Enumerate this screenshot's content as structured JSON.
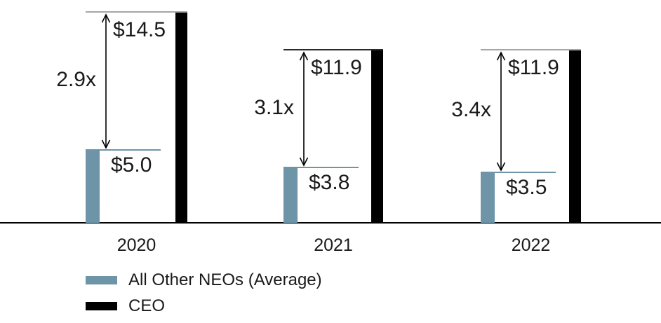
{
  "chart_data": {
    "type": "bar",
    "title": "",
    "categories": [
      "2020",
      "2021",
      "2022"
    ],
    "series": [
      {
        "name": "All Other NEOs (Average)",
        "values": [
          5.0,
          3.8,
          3.5
        ],
        "color": "#6E94A8"
      },
      {
        "name": "CEO",
        "values": [
          14.5,
          11.9,
          11.9
        ],
        "color": "#000000"
      }
    ],
    "groups": [
      {
        "category": "2020",
        "ceo_value": 14.5,
        "neo_value": 5.0,
        "ceo_label": "$14.5",
        "neo_label": "$5.0",
        "ratio_label": "2.9x"
      },
      {
        "category": "2021",
        "ceo_value": 11.9,
        "neo_value": 3.8,
        "ceo_label": "$11.9",
        "neo_label": "$3.8",
        "ratio_label": "3.1x"
      },
      {
        "category": "2022",
        "ceo_value": 11.9,
        "neo_value": 3.5,
        "ceo_label": "$11.9",
        "neo_label": "$3.5",
        "ratio_label": "3.4x"
      }
    ],
    "top_line_colors": [
      "#A6A6A6",
      "#2B2B2B",
      "#A6A6A6"
    ],
    "ylim": [
      0,
      15.5
    ],
    "grid": false,
    "legend_position": "bottom-left",
    "axis_line_color": "#000000",
    "text_color": "#1A1A1A"
  },
  "legend": {
    "items": [
      {
        "label": "All Other NEOs (Average)",
        "color": "#6E94A8"
      },
      {
        "label": "CEO",
        "color": "#000000"
      }
    ]
  }
}
